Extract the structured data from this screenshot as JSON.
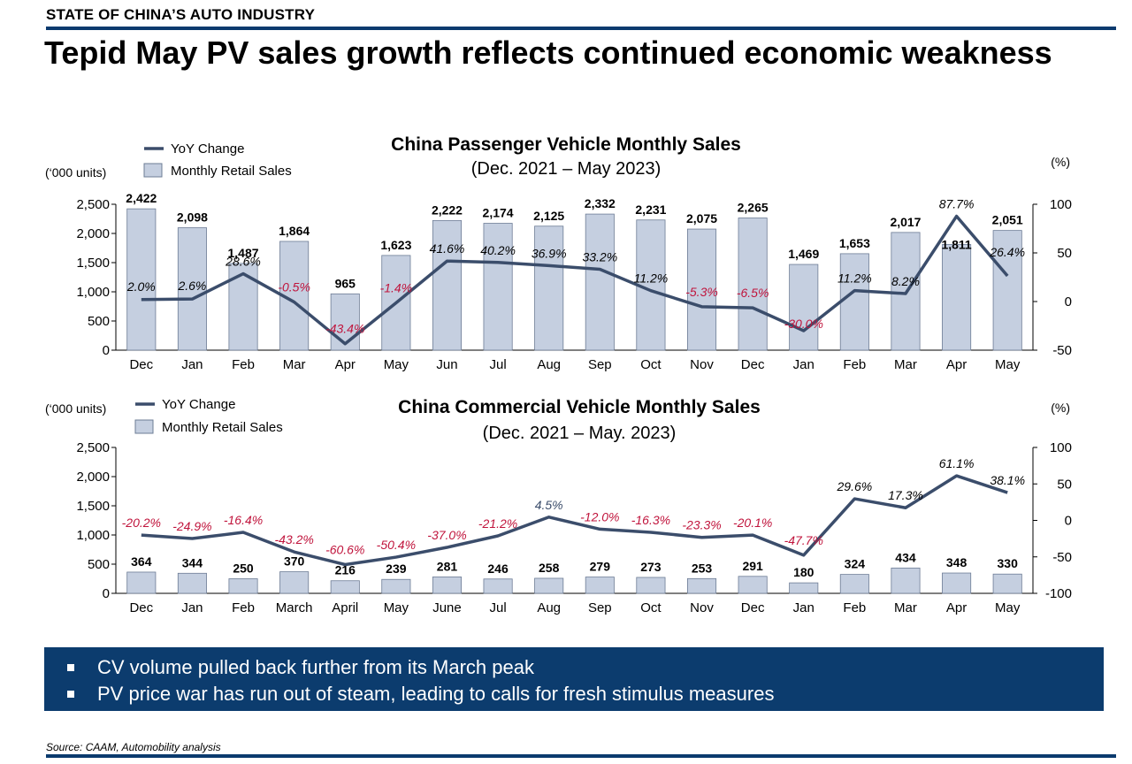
{
  "header": {
    "section_label": "STATE OF CHINA’S AUTO INDUSTRY",
    "headline": "Tepid May PV sales growth reflects continued economic weakness"
  },
  "colors": {
    "bar_fill": "#c5cfe0",
    "bar_stroke": "#6d7c95",
    "line": "#3b4d6b",
    "negative": "#c0143c",
    "positive": "#000000",
    "brand_navy": "#0c3c6e"
  },
  "chart_data": [
    {
      "type": "bar",
      "title": "China Passenger Vehicle Monthly Sales",
      "subtitle": "(Dec. 2021 – May 2023)",
      "ylabel": "(‘000 units)",
      "y2label": "(%)",
      "categories": [
        "Dec",
        "Jan",
        "Feb",
        "Mar",
        "Apr",
        "May",
        "Jun",
        "Jul",
        "Aug",
        "Sep",
        "Oct",
        "Nov",
        "Dec",
        "Jan",
        "Feb",
        "Mar",
        "Apr",
        "May"
      ],
      "ylim": [
        0,
        2500
      ],
      "yticks": [
        "2,500",
        "2,000",
        "1,500",
        "1,000",
        "500",
        "0"
      ],
      "y2lim": [
        -50,
        100
      ],
      "y2ticks": [
        "100",
        "50",
        "0",
        "-50"
      ],
      "series": [
        {
          "name": "Monthly Retail Sales",
          "kind": "bar",
          "values": [
            2422,
            2098,
            1487,
            1864,
            965,
            1623,
            2222,
            2174,
            2125,
            2332,
            2231,
            2075,
            2265,
            1469,
            1653,
            2017,
            1811,
            2051
          ],
          "labels": [
            "2,422",
            "2,098",
            "1,487",
            "1,864",
            "965",
            "1,623",
            "2,222",
            "2,174",
            "2,125",
            "2,332",
            "2,231",
            "2,075",
            "2,265",
            "1,469",
            "1,653",
            "2,017",
            "1,811",
            "2,051"
          ]
        },
        {
          "name": "YoY Change",
          "kind": "line",
          "axis": "right",
          "values": [
            2.0,
            2.6,
            28.6,
            -0.5,
            -43.4,
            -1.4,
            41.6,
            40.2,
            36.9,
            33.2,
            11.2,
            -5.3,
            -6.5,
            -30.0,
            11.2,
            8.2,
            87.7,
            26.4
          ],
          "labels": [
            "2.0%",
            "2.6%",
            "28.6%",
            "-0.5%",
            "-43.4%",
            "-1.4%",
            "41.6%",
            "40.2%",
            "36.9%",
            "33.2%",
            "11.2%",
            "-5.3%",
            "-6.5%",
            "-30.0%",
            "11.2%",
            "8.2%",
            "87.7%",
            "26.4%"
          ]
        }
      ],
      "legend": "top-left",
      "grid": false
    },
    {
      "type": "bar",
      "title": "China Commercial Vehicle Monthly Sales",
      "subtitle": "(Dec. 2021 – May. 2023)",
      "ylabel": "(‘000 units)",
      "y2label": "(%)",
      "categories": [
        "Dec",
        "Jan",
        "Feb",
        "March",
        "April",
        "May",
        "June",
        "Jul",
        "Aug",
        "Sep",
        "Oct",
        "Nov",
        "Dec",
        "Jan",
        "Feb",
        "Mar",
        "Apr",
        "May"
      ],
      "ylim": [
        0,
        2500
      ],
      "yticks": [
        "2,500",
        "2,000",
        "1,500",
        "1,000",
        "500",
        "0"
      ],
      "y2lim": [
        -100,
        100
      ],
      "y2ticks": [
        "100",
        "50",
        "0",
        "-50",
        "-100"
      ],
      "series": [
        {
          "name": "Monthly Retail Sales",
          "kind": "bar",
          "values": [
            364,
            344,
            250,
            370,
            216,
            239,
            281,
            246,
            258,
            279,
            273,
            253,
            291,
            180,
            324,
            434,
            348,
            330
          ],
          "labels": [
            "364",
            "344",
            "250",
            "370",
            "216",
            "239",
            "281",
            "246",
            "258",
            "279",
            "273",
            "253",
            "291",
            "180",
            "324",
            "434",
            "348",
            "330"
          ]
        },
        {
          "name": "YoY Change",
          "kind": "line",
          "axis": "right",
          "values": [
            -20.2,
            -24.9,
            -16.4,
            -43.2,
            -60.6,
            -50.4,
            -37.0,
            -21.2,
            4.5,
            -12.0,
            -16.3,
            -23.3,
            -20.1,
            -47.7,
            29.6,
            17.3,
            61.1,
            38.1
          ],
          "labels": [
            "-20.2%",
            "-24.9%",
            "-16.4%",
            "-43.2%",
            "-60.6%",
            "-50.4%",
            "-37.0%",
            "-21.2%",
            "4.5%",
            "-12.0%",
            "-16.3%",
            "-23.3%",
            "-20.1%",
            "-47.7%",
            "29.6%",
            "17.3%",
            "61.1%",
            "38.1%"
          ]
        }
      ],
      "legend": "top-left",
      "grid": false
    }
  ],
  "callout": {
    "bullets": [
      "CV volume pulled back further from its March peak",
      "PV price war has run out of steam, leading to calls for fresh stimulus measures"
    ]
  },
  "footer": {
    "source": "Source: CAAM, Automobility analysis"
  }
}
